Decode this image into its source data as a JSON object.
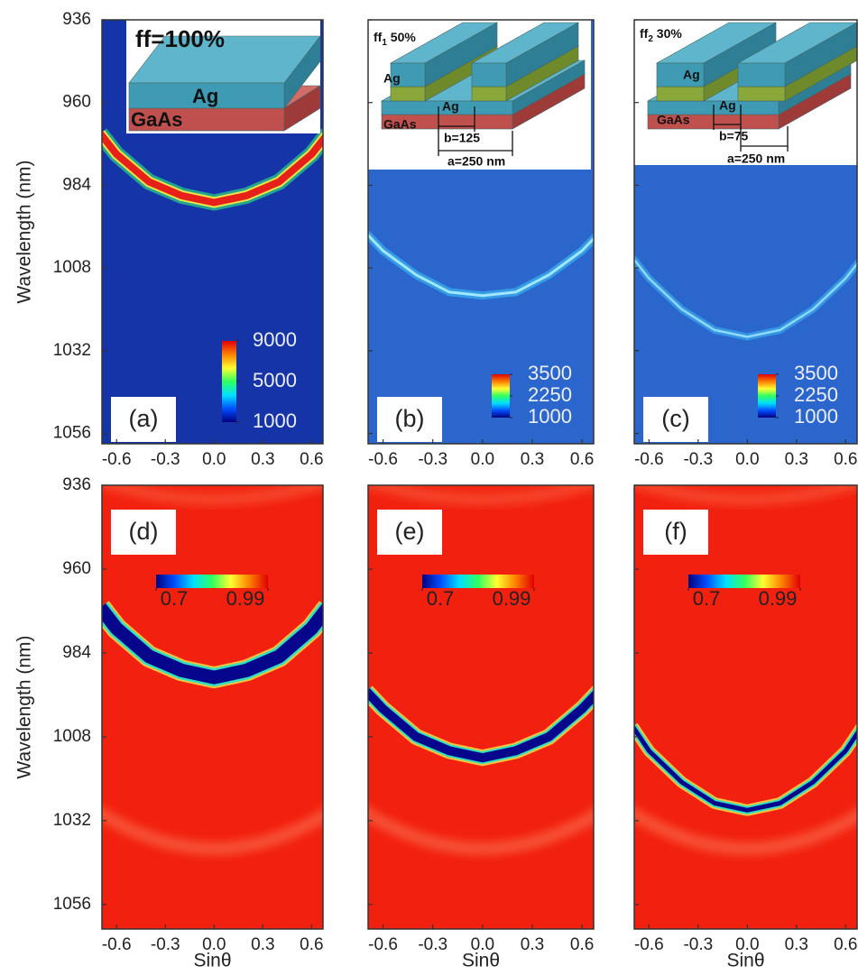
{
  "chart_data": [
    {
      "type": "heatmap",
      "panel_label": "(a)",
      "xlim": [
        -0.69,
        0.67
      ],
      "xticks": [
        -0.6,
        -0.3,
        {
          "value": 0,
          "label": "0.0"
        },
        0.3,
        0.6
      ],
      "ylim": [
        936,
        1059
      ],
      "yticks": [
        936,
        960,
        984,
        1008,
        1032,
        1056
      ],
      "ylabel": "Wavelength (nm)",
      "background": "#1434a8",
      "curve": {
        "x": [
          -0.7,
          -0.6,
          -0.4,
          -0.2,
          0,
          0.2,
          0.4,
          0.6,
          0.7
        ],
        "values": [
          969,
          975,
          983,
          987,
          989,
          987,
          983,
          975,
          969
        ],
        "color": "#e8201a"
      },
      "colorbar": {
        "orientation": "vertical",
        "range": [
          1000,
          9000
        ],
        "ticks": [
          9000,
          5000,
          1000
        ],
        "colors": [
          "#000080",
          "#0050ff",
          "#00e0ff",
          "#30ff60",
          "#ffff30",
          "#ff8000",
          "#e00000"
        ]
      },
      "inset": {
        "title": [
          "ff=100%"
        ],
        "labels": [
          "Ag",
          "GaAs"
        ]
      }
    },
    {
      "type": "heatmap",
      "panel_label": "(b)",
      "xlim": [
        -0.69,
        0.67
      ],
      "xticks": [
        -0.6,
        -0.3,
        {
          "value": 0,
          "label": "0.0"
        },
        0.3,
        0.6
      ],
      "ylim": [
        936,
        1059
      ],
      "yticks": [
        936,
        960,
        984,
        1008,
        1032,
        1056
      ],
      "background": "#2a66cc",
      "curve": {
        "x": [
          -0.7,
          -0.6,
          -0.4,
          -0.2,
          0,
          0.2,
          0.4,
          0.6,
          0.7
        ],
        "values": [
          998,
          1003,
          1010,
          1015,
          1016,
          1015,
          1010,
          1003,
          998
        ],
        "color": "#9fe8ff"
      },
      "colorbar": {
        "orientation": "vertical",
        "range": [
          1000,
          3500
        ],
        "ticks": [
          3500,
          2250,
          1000
        ],
        "colors": [
          "#000080",
          "#0050ff",
          "#00e0ff",
          "#30ff60",
          "#ffff30",
          "#ff8000",
          "#e00000"
        ]
      },
      "inset": {
        "title": [
          "ff",
          "1",
          " 50%"
        ],
        "labels": [
          "Ag",
          "Ag",
          "GaAs",
          "b=125",
          "a=250 nm"
        ]
      }
    },
    {
      "type": "heatmap",
      "panel_label": "(c)",
      "xlim": [
        -0.69,
        0.67
      ],
      "xticks": [
        -0.6,
        -0.3,
        {
          "value": 0,
          "label": "0.0"
        },
        0.3,
        0.6
      ],
      "ylim": [
        936,
        1059
      ],
      "yticks": [
        936,
        960,
        984,
        1008,
        1032,
        1056
      ],
      "background": "#2a66cc",
      "curve": {
        "x": [
          -0.7,
          -0.6,
          -0.4,
          -0.2,
          0,
          0.2,
          0.4,
          0.6,
          0.7
        ],
        "values": [
          1005,
          1011,
          1020,
          1026,
          1028,
          1026,
          1020,
          1011,
          1005
        ],
        "color": "#8fd8ff"
      },
      "colorbar": {
        "orientation": "vertical",
        "range": [
          1000,
          3500
        ],
        "ticks": [
          3500,
          2250,
          1000
        ],
        "colors": [
          "#000080",
          "#0050ff",
          "#00e0ff",
          "#30ff60",
          "#ffff30",
          "#ff8000",
          "#e00000"
        ]
      },
      "inset": {
        "title": [
          "ff",
          "2",
          " 30%"
        ],
        "labels": [
          "Ag",
          "Ag",
          "GaAs",
          "b=75",
          "a=250 nm"
        ]
      }
    },
    {
      "type": "heatmap",
      "panel_label": "(d)",
      "xlim": [
        -0.69,
        0.67
      ],
      "xticks": [
        -0.6,
        -0.3,
        {
          "value": 0,
          "label": "0.0"
        },
        0.3,
        0.6
      ],
      "ylim": [
        936,
        1063
      ],
      "yticks": [
        936,
        960,
        984,
        1008,
        1032,
        1056
      ],
      "ylabel": "Wavelength (nm)",
      "xlabel": "Sinθ",
      "background": "#f2200e",
      "curve": {
        "x": [
          -0.7,
          -0.6,
          -0.4,
          -0.2,
          0,
          0.2,
          0.4,
          0.6,
          0.7
        ],
        "values": [
          971,
          977,
          985,
          989,
          991,
          989,
          985,
          977,
          971
        ],
        "color": "#06068c"
      },
      "colorbar": {
        "orientation": "horizontal",
        "range": [
          0.7,
          0.99
        ],
        "ticks": [
          0.7,
          0.99
        ],
        "colors": [
          "#000080",
          "#0050ff",
          "#00e0ff",
          "#30ff60",
          "#ffff30",
          "#ff8000",
          "#e00000"
        ]
      }
    },
    {
      "type": "heatmap",
      "panel_label": "(e)",
      "xlim": [
        -0.69,
        0.67
      ],
      "xticks": [
        -0.6,
        -0.3,
        {
          "value": 0,
          "label": "0.0"
        },
        0.3,
        0.6
      ],
      "ylim": [
        936,
        1063
      ],
      "yticks": [
        936,
        960,
        984,
        1008,
        1032,
        1056
      ],
      "xlabel": "Sinθ",
      "background": "#f2200e",
      "curve": {
        "x": [
          -0.7,
          -0.6,
          -0.4,
          -0.2,
          0,
          0.2,
          0.4,
          0.6,
          0.7
        ],
        "values": [
          995,
          1000,
          1008,
          1012,
          1014,
          1012,
          1008,
          1000,
          995
        ],
        "color": "#06068c"
      },
      "colorbar": {
        "orientation": "horizontal",
        "range": [
          0.7,
          0.99
        ],
        "ticks": [
          0.7,
          0.99
        ],
        "colors": [
          "#000080",
          "#0050ff",
          "#00e0ff",
          "#30ff60",
          "#ffff30",
          "#ff8000",
          "#e00000"
        ]
      }
    },
    {
      "type": "heatmap",
      "panel_label": "(f)",
      "xlim": [
        -0.69,
        0.67
      ],
      "xticks": [
        -0.6,
        -0.3,
        {
          "value": 0,
          "label": "0.0"
        },
        0.3,
        0.6
      ],
      "ylim": [
        936,
        1063
      ],
      "yticks": [
        936,
        960,
        984,
        1008,
        1032,
        1056
      ],
      "xlabel": "Sinθ",
      "background": "#f2200e",
      "curve": {
        "x": [
          -0.7,
          -0.6,
          -0.4,
          -0.2,
          0,
          0.2,
          0.4,
          0.6,
          0.7
        ],
        "values": [
          1005,
          1012,
          1021,
          1027,
          1029,
          1027,
          1021,
          1012,
          1005
        ],
        "color": "#06068c"
      },
      "colorbar": {
        "orientation": "horizontal",
        "range": [
          0.7,
          0.99
        ],
        "ticks": [
          0.7,
          0.99
        ],
        "colors": [
          "#000080",
          "#0050ff",
          "#00e0ff",
          "#30ff60",
          "#ffff30",
          "#ff8000",
          "#e00000"
        ]
      }
    }
  ]
}
